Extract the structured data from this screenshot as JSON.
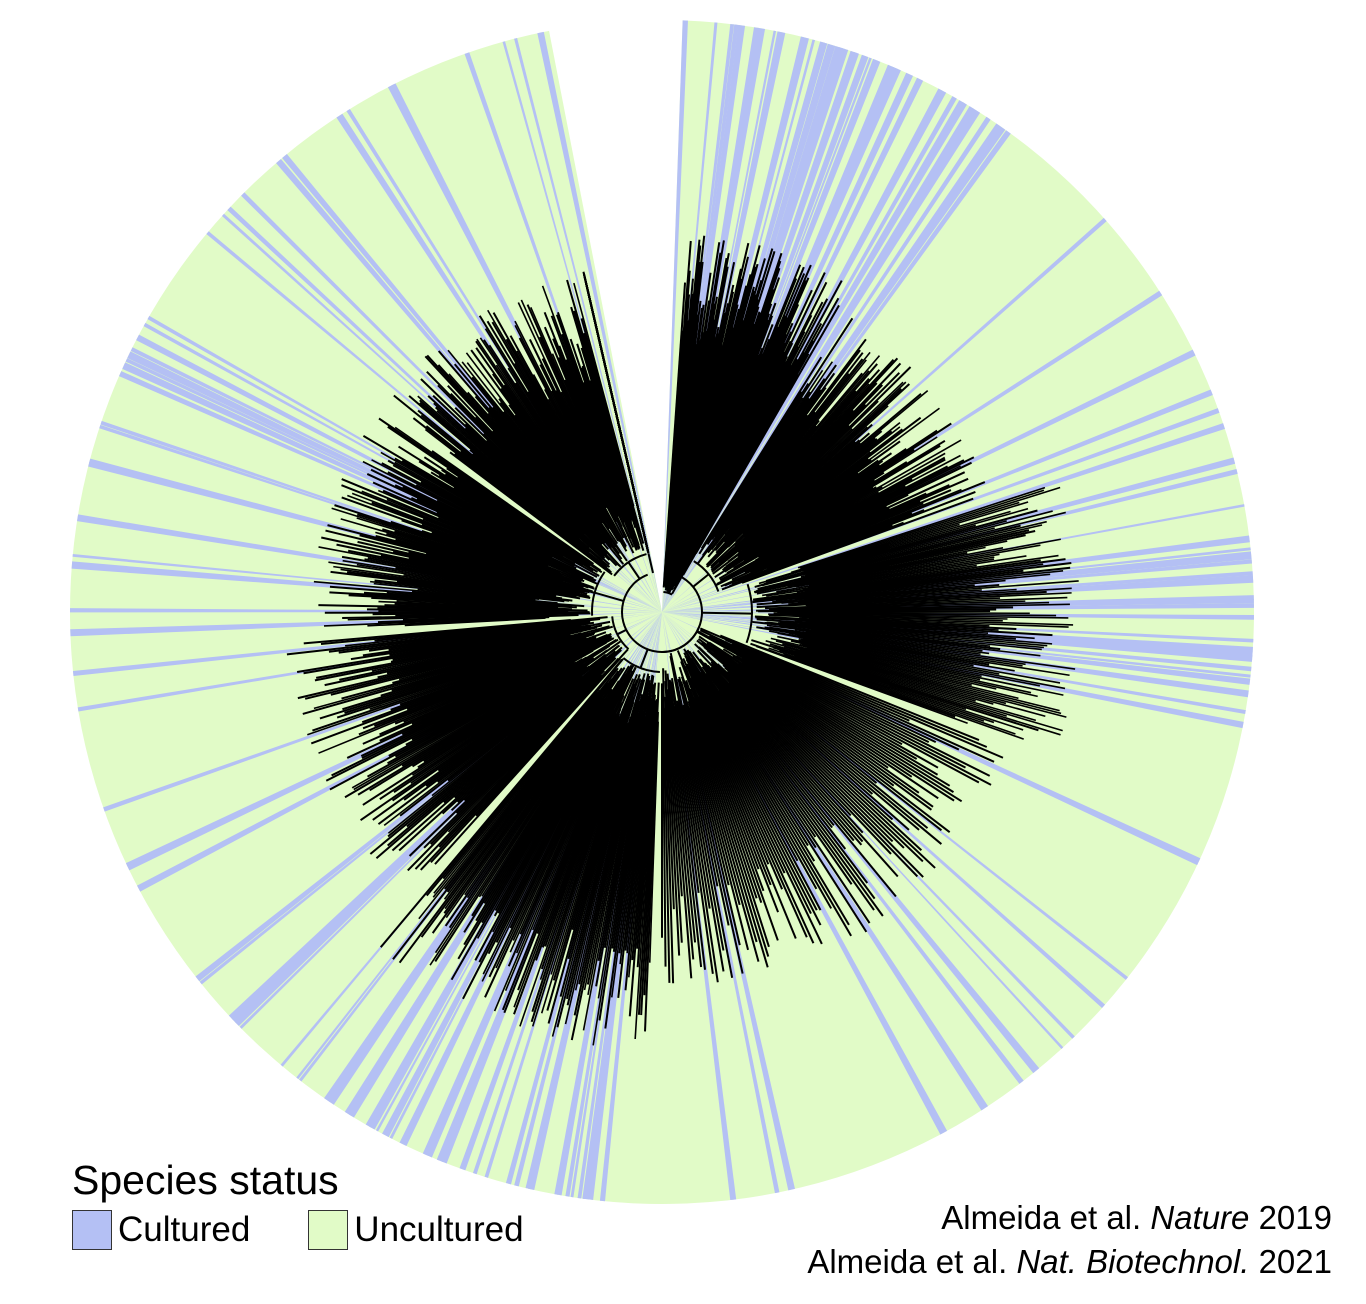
{
  "legend": {
    "title": "Species status",
    "items": [
      {
        "label": "Cultured",
        "color": "#b4c0f4"
      },
      {
        "label": "Uncultured",
        "color": "#e1fbc7"
      }
    ]
  },
  "citations": [
    {
      "authors": "Almeida et al.",
      "journal": "Nature",
      "year": "2019"
    },
    {
      "authors": "Almeida et al.",
      "journal": "Nat. Biotechnol.",
      "year": "2021"
    }
  ],
  "colors": {
    "cultured": "#b4c0f4",
    "uncultured": "#e1fbc7",
    "branches": "#000000"
  }
}
